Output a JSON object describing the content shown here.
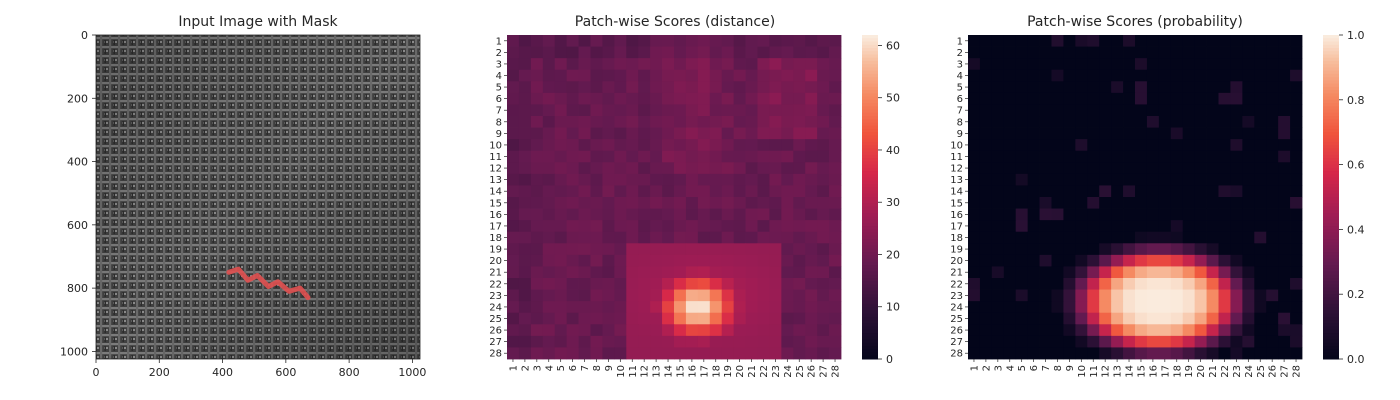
{
  "figure": {
    "panels": [
      {
        "id": "input",
        "title": "Input Image with Mask"
      },
      {
        "id": "distance",
        "title": "Patch-wise Scores (distance)"
      },
      {
        "id": "probability",
        "title": "Patch-wise Scores (probability)"
      }
    ]
  },
  "chart_data": [
    {
      "type": "image",
      "title": "Input Image with Mask",
      "x_ticks": [
        "0",
        "200",
        "400",
        "600",
        "800",
        "1000"
      ],
      "y_ticks": [
        "0",
        "200",
        "400",
        "600",
        "800",
        "1000"
      ],
      "xlim": [
        0,
        1024
      ],
      "ylim": [
        1024,
        0
      ],
      "mask_color": "#e05050",
      "mask_path_data_coords": [
        [
          420,
          750
        ],
        [
          450,
          740
        ],
        [
          480,
          775
        ],
        [
          510,
          760
        ],
        [
          545,
          795
        ],
        [
          575,
          780
        ],
        [
          610,
          810
        ],
        [
          645,
          800
        ],
        [
          670,
          830
        ]
      ]
    },
    {
      "type": "heatmap",
      "title": "Patch-wise Scores (distance)",
      "rows": [
        "1",
        "2",
        "3",
        "4",
        "5",
        "6",
        "7",
        "8",
        "9",
        "10",
        "11",
        "12",
        "13",
        "14",
        "15",
        "16",
        "17",
        "18",
        "19",
        "20",
        "21",
        "22",
        "23",
        "24",
        "25",
        "26",
        "27",
        "28"
      ],
      "cols": [
        "1",
        "2",
        "3",
        "4",
        "5",
        "6",
        "7",
        "8",
        "9",
        "10",
        "11",
        "12",
        "13",
        "14",
        "15",
        "16",
        "17",
        "18",
        "19",
        "20",
        "21",
        "22",
        "23",
        "24",
        "25",
        "26",
        "27",
        "28"
      ],
      "colormap": "rocket",
      "vmin": 0,
      "vmax": 62,
      "colorbar_ticks": [
        "0",
        "10",
        "20",
        "30",
        "40",
        "50",
        "60"
      ],
      "peak": {
        "row": 24,
        "col": 16,
        "value": 62
      },
      "background_range": [
        14,
        24
      ]
    },
    {
      "type": "heatmap",
      "title": "Patch-wise Scores (probability)",
      "rows": [
        "1",
        "2",
        "3",
        "4",
        "5",
        "6",
        "7",
        "8",
        "9",
        "10",
        "11",
        "12",
        "13",
        "14",
        "15",
        "16",
        "17",
        "18",
        "19",
        "20",
        "21",
        "22",
        "23",
        "24",
        "25",
        "26",
        "27",
        "28"
      ],
      "cols": [
        "1",
        "2",
        "3",
        "4",
        "5",
        "6",
        "7",
        "8",
        "9",
        "10",
        "11",
        "12",
        "13",
        "14",
        "15",
        "16",
        "17",
        "18",
        "19",
        "20",
        "21",
        "22",
        "23",
        "24",
        "25",
        "26",
        "27",
        "28"
      ],
      "colormap": "rocket",
      "vmin": 0.0,
      "vmax": 1.0,
      "colorbar_ticks": [
        "0.0",
        "0.2",
        "0.4",
        "0.6",
        "0.8",
        "1.0"
      ],
      "peak": {
        "row": 24,
        "col": 16,
        "value": 1.0
      },
      "background_value": 0.0
    }
  ]
}
